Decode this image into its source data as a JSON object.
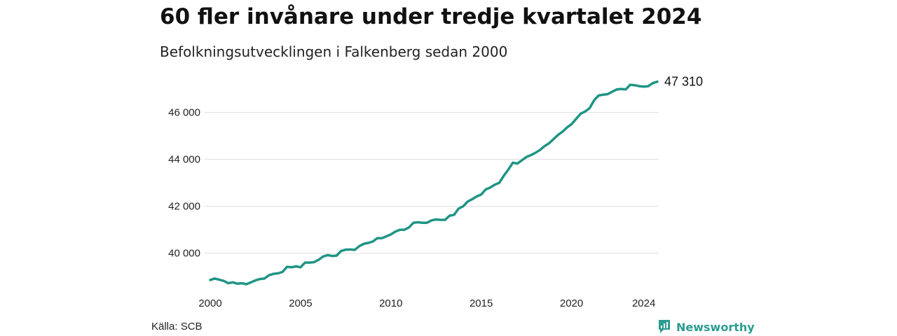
{
  "header": {
    "title": "60 fler invånare under tredje kvartalet 2024",
    "subtitle": "Befolkningsutvecklingen i Falkenberg sedan 2000"
  },
  "footer": {
    "source": "Källa: SCB",
    "brand": "Newsworthy"
  },
  "colors": {
    "line": "#1f9485",
    "grid": "#dddddd",
    "brand": "#2a9d8f"
  },
  "chart_data": {
    "type": "line",
    "title": "60 fler invånare under tredje kvartalet 2024",
    "subtitle": "Befolkningsutvecklingen i Falkenberg sedan 2000",
    "xlabel": "",
    "ylabel": "",
    "grid": "horizontal",
    "legend": "none",
    "xlim": [
      2000,
      2024.75
    ],
    "ylim": [
      38500,
      47600
    ],
    "xticks": [
      2000,
      2005,
      2010,
      2015,
      2020,
      2024
    ],
    "yticks": [
      40000,
      42000,
      44000,
      46000
    ],
    "ytick_labels": [
      "40 000",
      "42 000",
      "44 000",
      "46 000"
    ],
    "end_label": "47 310",
    "series": [
      {
        "x": [
          2000.0,
          2000.25,
          2000.5,
          2000.75,
          2001.0,
          2001.25,
          2001.5,
          2001.75,
          2002.0,
          2002.25,
          2002.5,
          2002.75,
          2003.0,
          2003.25,
          2003.5,
          2003.75,
          2004.0,
          2004.25,
          2004.5,
          2004.75,
          2005.0,
          2005.25,
          2005.5,
          2005.75,
          2006.0,
          2006.25,
          2006.5,
          2006.75,
          2007.0,
          2007.25,
          2007.5,
          2007.75,
          2008.0,
          2008.25,
          2008.5,
          2008.75,
          2009.0,
          2009.25,
          2009.5,
          2009.75,
          2010.0,
          2010.25,
          2010.5,
          2010.75,
          2011.0,
          2011.25,
          2011.5,
          2011.75,
          2012.0,
          2012.25,
          2012.5,
          2012.75,
          2013.0,
          2013.25,
          2013.5,
          2013.75,
          2014.0,
          2014.25,
          2014.5,
          2014.75,
          2015.0,
          2015.25,
          2015.5,
          2015.75,
          2016.0,
          2016.25,
          2016.5,
          2016.75,
          2017.0,
          2017.25,
          2017.5,
          2017.75,
          2018.0,
          2018.25,
          2018.5,
          2018.75,
          2019.0,
          2019.25,
          2019.5,
          2019.75,
          2020.0,
          2020.25,
          2020.5,
          2020.75,
          2021.0,
          2021.25,
          2021.5,
          2021.75,
          2022.0,
          2022.25,
          2022.5,
          2022.75,
          2023.0,
          2023.25,
          2023.5,
          2023.75,
          2024.0,
          2024.25,
          2024.5,
          2024.75
        ],
        "values": [
          38860,
          38920,
          38870,
          38820,
          38720,
          38760,
          38700,
          38720,
          38680,
          38760,
          38840,
          38900,
          38920,
          39060,
          39120,
          39140,
          39200,
          39420,
          39400,
          39440,
          39400,
          39600,
          39600,
          39620,
          39720,
          39860,
          39920,
          39880,
          39900,
          40100,
          40150,
          40160,
          40140,
          40300,
          40400,
          40440,
          40500,
          40640,
          40640,
          40720,
          40800,
          40920,
          41000,
          41000,
          41100,
          41300,
          41320,
          41300,
          41300,
          41400,
          41440,
          41420,
          41420,
          41600,
          41640,
          41900,
          42000,
          42200,
          42300,
          42420,
          42500,
          42720,
          42800,
          42920,
          43000,
          43300,
          43560,
          43860,
          43820,
          43960,
          44100,
          44180,
          44280,
          44400,
          44560,
          44680,
          44860,
          45040,
          45180,
          45360,
          45500,
          45720,
          45940,
          46040,
          46180,
          46520,
          46720,
          46760,
          46780,
          46880,
          46980,
          47000,
          46980,
          47180,
          47160,
          47120,
          47100,
          47120,
          47250,
          47310
        ]
      }
    ]
  }
}
